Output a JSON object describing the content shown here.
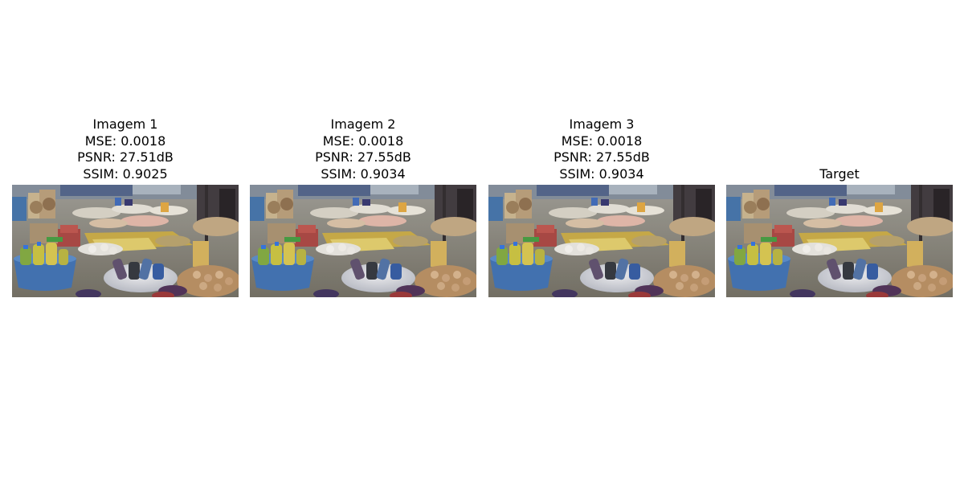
{
  "panels": [
    {
      "title_lines": [
        "Imagem 1",
        "MSE: 0.0018",
        "PSNR: 27.51dB",
        "SSIM: 0.9025"
      ],
      "image": "market-scene-image"
    },
    {
      "title_lines": [
        "Imagem 2",
        "MSE: 0.0018",
        "PSNR: 27.55dB",
        "SSIM: 0.9034"
      ],
      "image": "market-scene-image"
    },
    {
      "title_lines": [
        "Imagem 3",
        "MSE: 0.0018",
        "PSNR: 27.55dB",
        "SSIM: 0.9034"
      ],
      "image": "market-scene-image"
    },
    {
      "title_lines": [
        "Target"
      ],
      "image": "market-scene-image"
    }
  ]
}
